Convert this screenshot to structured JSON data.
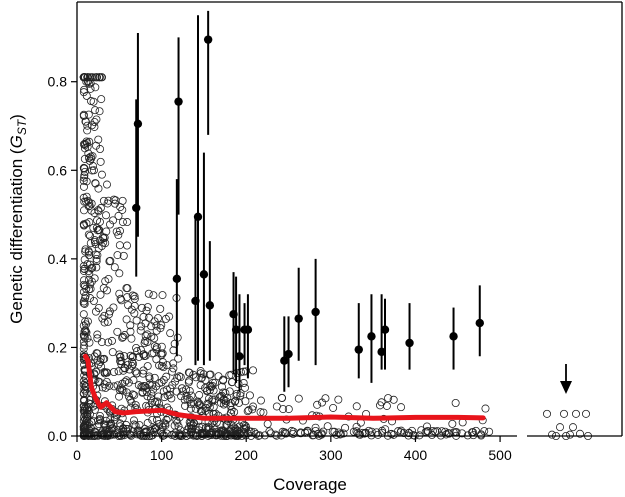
{
  "chart_data": {
    "type": "scatter",
    "title": "",
    "xlabel": "Coverage",
    "ylabel_main": "Genetic differentiation (",
    "ylabel_var": "G",
    "ylabel_sub": "ST",
    "ylabel_close": ")",
    "xlim": [
      0,
      520
    ],
    "ylim": [
      0,
      0.98
    ],
    "x_break_after": 520,
    "x_ticks": [
      "0",
      "100",
      "200",
      "300",
      "400",
      "500"
    ],
    "x_tick_values": [
      0,
      100,
      200,
      300,
      400,
      500
    ],
    "y_ticks": [
      "0.0",
      "0.2",
      "0.4",
      "0.6",
      "0.8"
    ],
    "y_tick_values": [
      0.0,
      0.2,
      0.4,
      0.6,
      0.8
    ],
    "grid": false,
    "colors": {
      "trend": "#e8141b",
      "points": "#000000"
    },
    "series": [
      {
        "marker": "filled-circle-with-error-bar",
        "points": [
          {
            "x": 70,
            "y": 0.515,
            "lo": 0.36,
            "hi": 0.76
          },
          {
            "x": 72,
            "y": 0.705,
            "lo": 0.45,
            "hi": 0.91
          },
          {
            "x": 118,
            "y": 0.355,
            "lo": 0.18,
            "hi": 0.58
          },
          {
            "x": 120,
            "y": 0.755,
            "lo": 0.5,
            "hi": 0.9
          },
          {
            "x": 140,
            "y": 0.305,
            "lo": 0.16,
            "hi": 0.5
          },
          {
            "x": 143,
            "y": 0.495,
            "lo": 0.17,
            "hi": 0.95
          },
          {
            "x": 150,
            "y": 0.365,
            "lo": 0.16,
            "hi": 0.64
          },
          {
            "x": 155,
            "y": 0.895,
            "lo": 0.68,
            "hi": 0.96
          },
          {
            "x": 157,
            "y": 0.295,
            "lo": 0.17,
            "hi": 0.44
          },
          {
            "x": 185,
            "y": 0.275,
            "lo": 0.14,
            "hi": 0.37
          },
          {
            "x": 188,
            "y": 0.24,
            "lo": 0.12,
            "hi": 0.36
          },
          {
            "x": 192,
            "y": 0.18,
            "lo": 0.1,
            "hi": 0.32
          },
          {
            "x": 198,
            "y": 0.24,
            "lo": 0.16,
            "hi": 0.3
          },
          {
            "x": 202,
            "y": 0.24,
            "lo": 0.13,
            "hi": 0.32
          },
          {
            "x": 245,
            "y": 0.17,
            "lo": 0.1,
            "hi": 0.27
          },
          {
            "x": 250,
            "y": 0.185,
            "lo": 0.11,
            "hi": 0.27
          },
          {
            "x": 262,
            "y": 0.265,
            "lo": 0.17,
            "hi": 0.38
          },
          {
            "x": 282,
            "y": 0.28,
            "lo": 0.16,
            "hi": 0.4
          },
          {
            "x": 333,
            "y": 0.195,
            "lo": 0.13,
            "hi": 0.3
          },
          {
            "x": 348,
            "y": 0.225,
            "lo": 0.12,
            "hi": 0.32
          },
          {
            "x": 360,
            "y": 0.19,
            "lo": 0.15,
            "hi": 0.32
          },
          {
            "x": 364,
            "y": 0.24,
            "lo": 0.15,
            "hi": 0.31
          },
          {
            "x": 393,
            "y": 0.21,
            "lo": 0.15,
            "hi": 0.3
          },
          {
            "x": 445,
            "y": 0.225,
            "lo": 0.15,
            "hi": 0.29
          },
          {
            "x": 476,
            "y": 0.255,
            "lo": 0.18,
            "hi": 0.34
          }
        ]
      },
      {
        "marker": "red-line",
        "x": [
          10,
          13,
          17,
          22,
          28,
          35,
          45,
          55,
          70,
          100,
          120,
          150,
          200,
          250,
          300,
          350,
          400,
          450,
          480
        ],
        "y": [
          0.18,
          0.17,
          0.11,
          0.085,
          0.065,
          0.075,
          0.055,
          0.052,
          0.055,
          0.058,
          0.048,
          0.04,
          0.04,
          0.04,
          0.043,
          0.04,
          0.042,
          0.042,
          0.041
        ]
      }
    ],
    "open_points_note_seed": 7,
    "annotation": "down-arrow"
  }
}
